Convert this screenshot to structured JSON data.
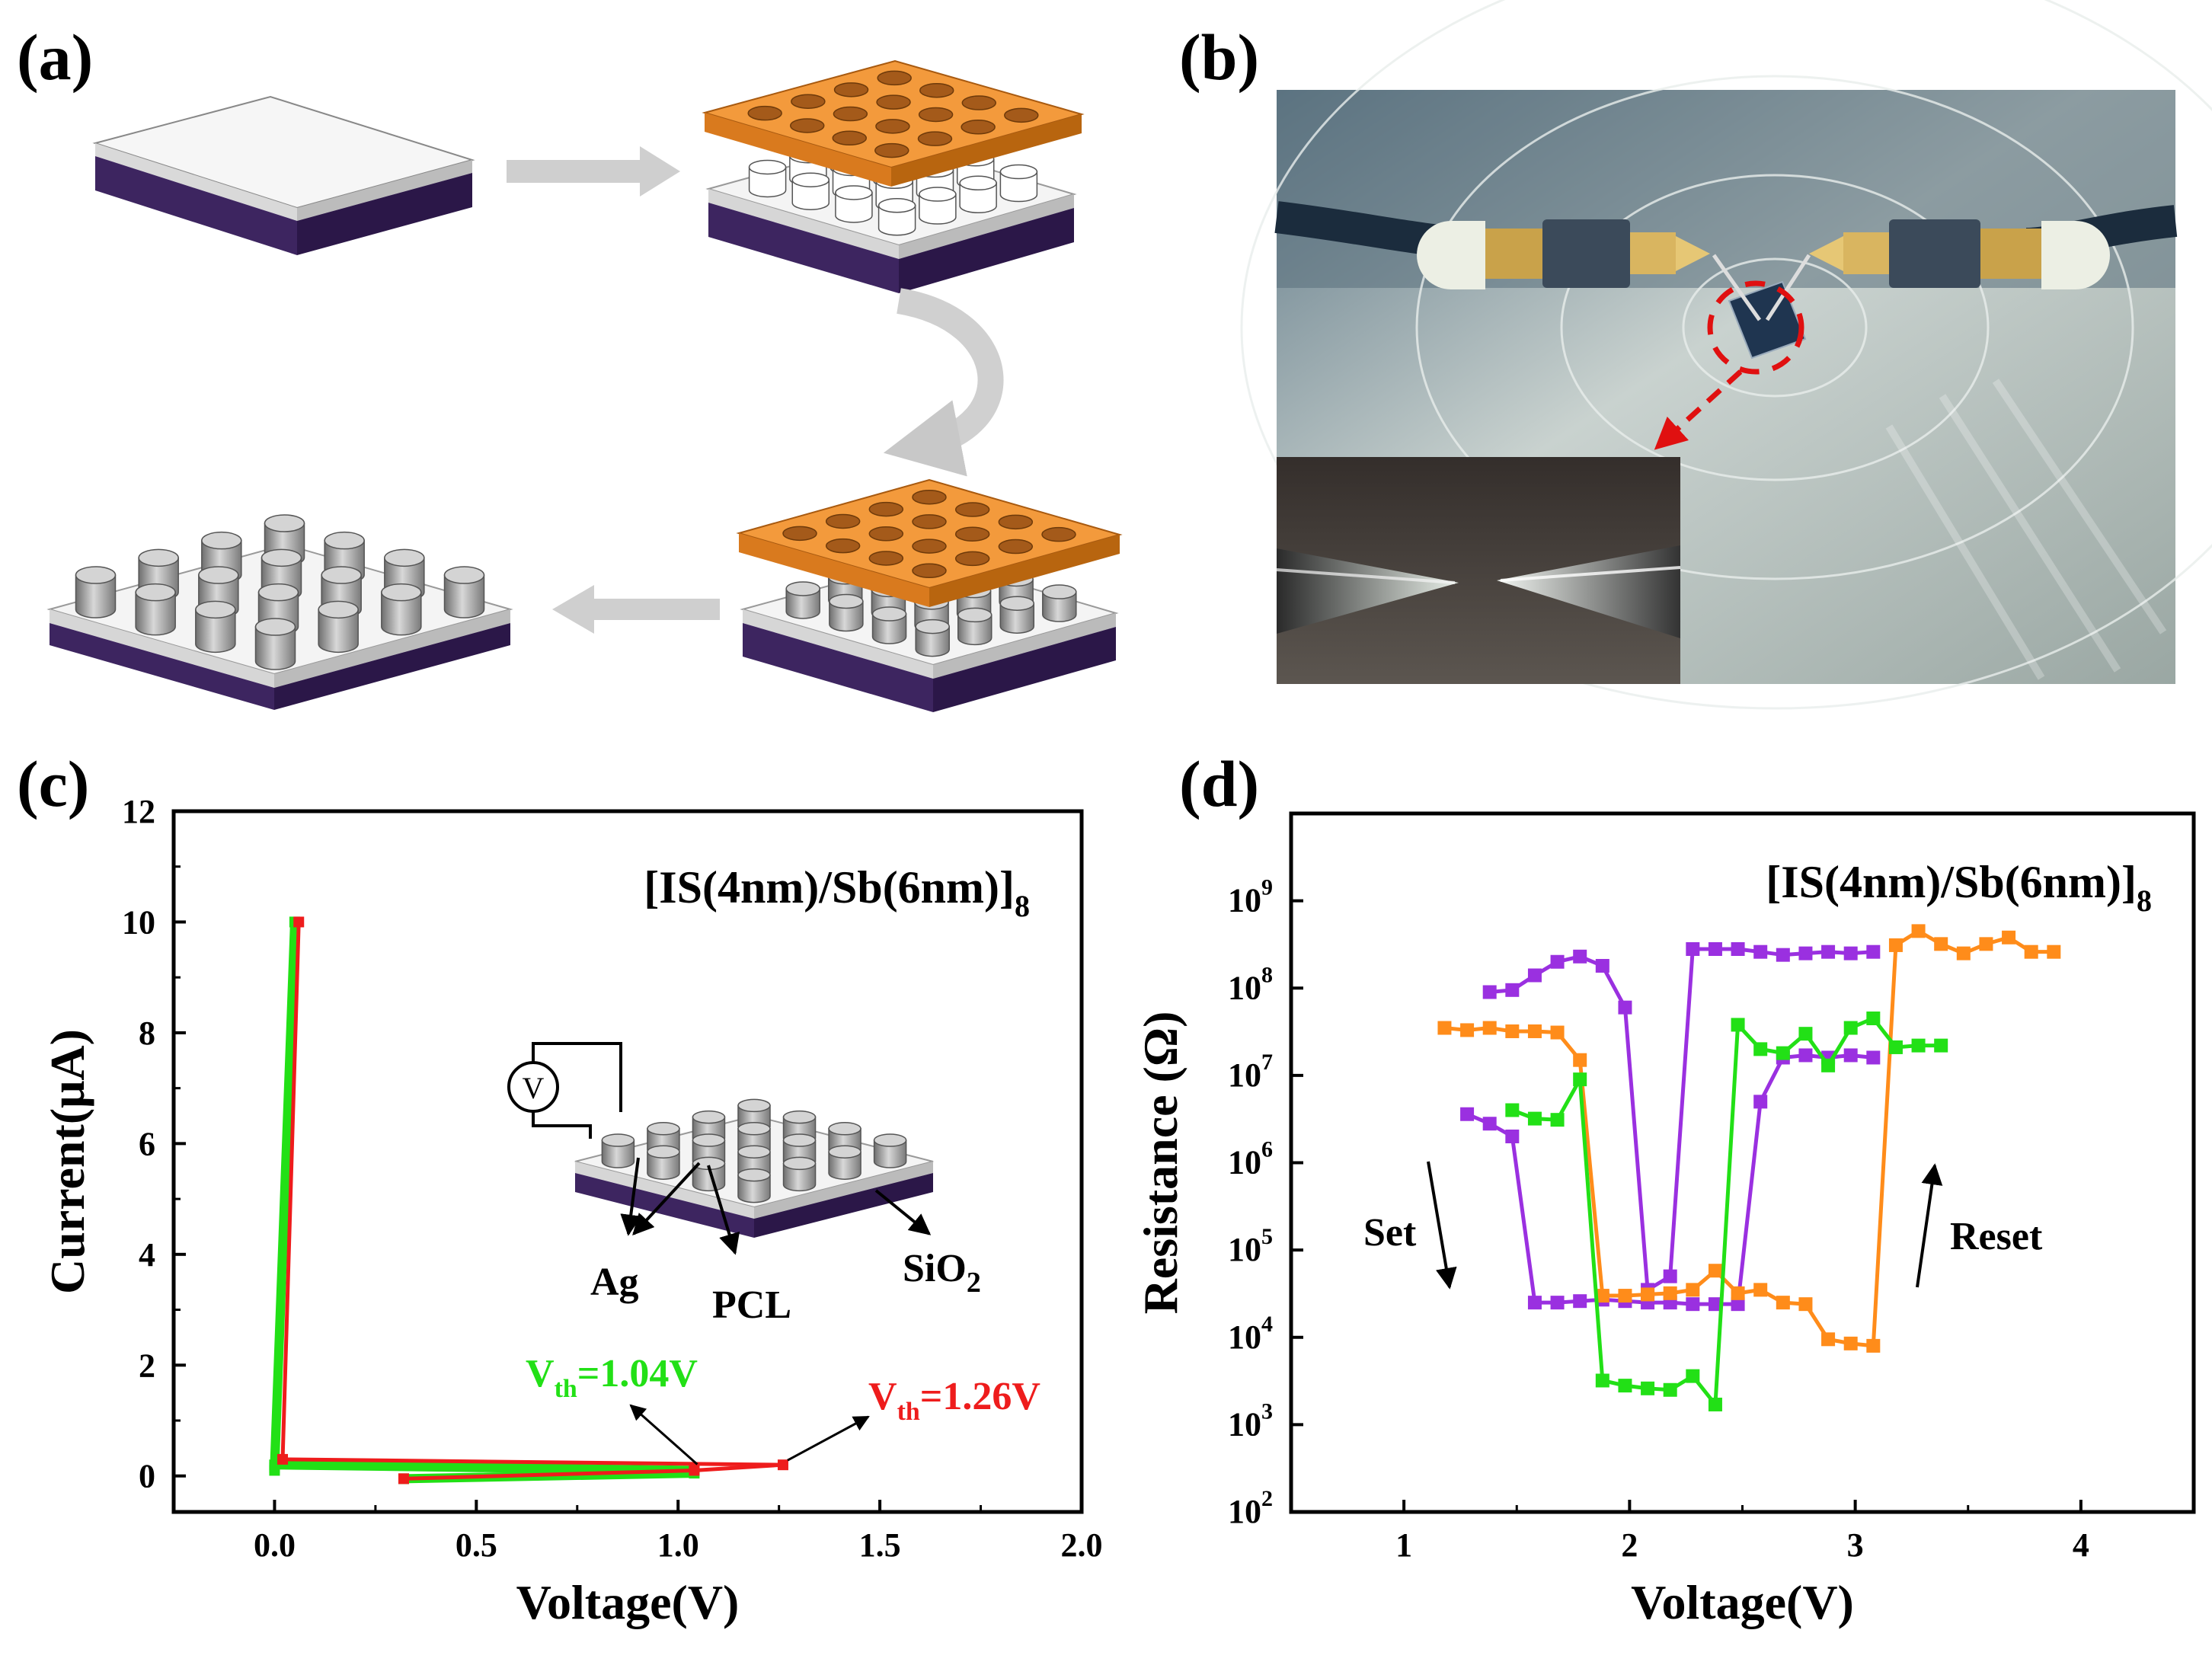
{
  "panels": {
    "a": {
      "label": "(a)"
    },
    "b": {
      "label": "(b)"
    },
    "c": {
      "label": "(c)"
    },
    "d": {
      "label": "(d)"
    }
  },
  "chart_data": [
    {
      "id": "c",
      "type": "line",
      "xlabel": "Voltage(V)",
      "ylabel": "Current(μA)",
      "xlim": [
        -0.25,
        2.0
      ],
      "ylim": [
        -0.65,
        12
      ],
      "xticks": [
        "0.0",
        "0.5",
        "1.0",
        "1.5",
        "2.0"
      ],
      "yticks": [
        "0",
        "2",
        "4",
        "6",
        "8",
        "10",
        "12"
      ],
      "sample": {
        "main": "[IS(4nm)/Sb(6nm)]",
        "sub": "8"
      },
      "inset_labels": {
        "ag": "Ag",
        "pcl": "PCL",
        "sio2_main": "SiO",
        "sio2_sub": "2",
        "meter": "V"
      },
      "annotations": [
        {
          "main": "V",
          "sub": "th",
          "value": "=1.04V",
          "color": "#22e016"
        },
        {
          "main": "V",
          "sub": "th",
          "value": "=1.26V",
          "color": "#ee1c1c"
        }
      ],
      "series": [
        {
          "color": "#22e016",
          "x": [
            0.32,
            1.04,
            1.04,
            0.0,
            0.05,
            0.0,
            0.0,
            0.05
          ],
          "y": [
            -0.05,
            0.05,
            0.1,
            0.2,
            10.0,
            0.15,
            0.1,
            10.0
          ]
        },
        {
          "color": "#ee1c1c",
          "x": [
            0.32,
            1.04,
            1.26,
            0.02,
            0.06
          ],
          "y": [
            -0.05,
            0.1,
            0.2,
            0.3,
            10.0
          ]
        }
      ]
    },
    {
      "id": "d",
      "type": "line",
      "xlabel": "Voltage(V)",
      "ylabel": "Resistance (Ω)",
      "yscale": "log",
      "xlim": [
        0.5,
        4.5
      ],
      "ylim_exp": [
        2,
        10
      ],
      "xticks": [
        "1",
        "2",
        "3",
        "4"
      ],
      "yticks": [
        "2",
        "3",
        "4",
        "5",
        "6",
        "7",
        "8",
        "9"
      ],
      "sample": {
        "main": "[IS(4nm)/Sb(6nm)]",
        "sub": "8"
      },
      "set_label": "Set",
      "reset_label": "Reset",
      "series": [
        {
          "color": "#9a30e0",
          "points": [
            [
              1.38,
              90000000.0
            ],
            [
              1.48,
              95000000.0
            ],
            [
              1.58,
              140000000.0
            ],
            [
              1.68,
              200000000.0
            ],
            [
              1.78,
              230000000.0
            ],
            [
              1.88,
              180000000.0
            ],
            [
              1.98,
              60000000.0
            ],
            [
              2.08,
              35000.0
            ],
            [
              2.18,
              50000.0
            ],
            [
              2.28,
              280000000.0
            ],
            [
              2.38,
              280000000.0
            ],
            [
              2.48,
              280000000.0
            ],
            [
              2.58,
              260000000.0
            ],
            [
              2.68,
              240000000.0
            ],
            [
              2.78,
              250000000.0
            ],
            [
              2.88,
              260000000.0
            ],
            [
              2.98,
              250000000.0
            ],
            [
              3.08,
              260000000.0
            ]
          ]
        },
        {
          "color": "#9a30e0",
          "points": [
            [
              1.28,
              3600000.0
            ],
            [
              1.38,
              2800000.0
            ],
            [
              1.48,
              2000000.0
            ],
            [
              1.58,
              25000.0
            ],
            [
              1.68,
              25000.0
            ],
            [
              1.78,
              26000.0
            ],
            [
              1.88,
              27000.0
            ],
            [
              1.98,
              26000.0
            ],
            [
              2.08,
              25000.0
            ],
            [
              2.18,
              25000.0
            ],
            [
              2.28,
              24000.0
            ],
            [
              2.38,
              24000.0
            ],
            [
              2.48,
              24000.0
            ],
            [
              2.58,
              5000000.0
            ],
            [
              2.68,
              16000000.0
            ],
            [
              2.78,
              17000000.0
            ],
            [
              2.88,
              16000000.0
            ],
            [
              2.98,
              17000000.0
            ],
            [
              3.08,
              16000000.0
            ]
          ]
        },
        {
          "color": "#ff8c1a",
          "points": [
            [
              1.18,
              35000000.0
            ],
            [
              1.28,
              33000000.0
            ],
            [
              1.38,
              35000000.0
            ],
            [
              1.48,
              32000000.0
            ],
            [
              1.58,
              32000000.0
            ],
            [
              1.68,
              31000000.0
            ],
            [
              1.78,
              15000000.0
            ],
            [
              1.88,
              30000.0
            ],
            [
              1.98,
              30000.0
            ],
            [
              2.08,
              31000.0
            ],
            [
              2.18,
              32000.0
            ],
            [
              2.28,
              35000.0
            ],
            [
              2.38,
              58000.0
            ],
            [
              2.48,
              32000.0
            ],
            [
              2.58,
              35000.0
            ],
            [
              2.68,
              25000.0
            ],
            [
              2.78,
              24000.0
            ],
            [
              2.88,
              9500.0
            ],
            [
              2.98,
              8500.0
            ],
            [
              3.08,
              8000.0
            ],
            [
              3.18,
              310000000.0
            ],
            [
              3.28,
              450000000.0
            ],
            [
              3.38,
              320000000.0
            ],
            [
              3.48,
              250000000.0
            ],
            [
              3.58,
              320000000.0
            ],
            [
              3.68,
              380000000.0
            ],
            [
              3.78,
              260000000.0
            ],
            [
              3.88,
              260000000.0
            ]
          ]
        },
        {
          "color": "#22e016",
          "points": [
            [
              1.48,
              4000000.0
            ],
            [
              1.58,
              3200000.0
            ],
            [
              1.68,
              3100000.0
            ],
            [
              1.78,
              9000000.0
            ],
            [
              1.88,
              3200.0
            ],
            [
              1.98,
              2800.0
            ],
            [
              2.08,
              2600.0
            ],
            [
              2.18,
              2500.0
            ],
            [
              2.28,
              3600.0
            ],
            [
              2.38,
              1700.0
            ],
            [
              2.48,
              38000000.0
            ],
            [
              2.58,
              20000000.0
            ],
            [
              2.68,
              18000000.0
            ],
            [
              2.78,
              30000000.0
            ],
            [
              2.88,
              13000000.0
            ],
            [
              2.98,
              35000000.0
            ],
            [
              3.08,
              45000000.0
            ],
            [
              3.18,
              21000000.0
            ],
            [
              3.28,
              22000000.0
            ],
            [
              3.38,
              22000000.0
            ]
          ]
        }
      ]
    }
  ]
}
